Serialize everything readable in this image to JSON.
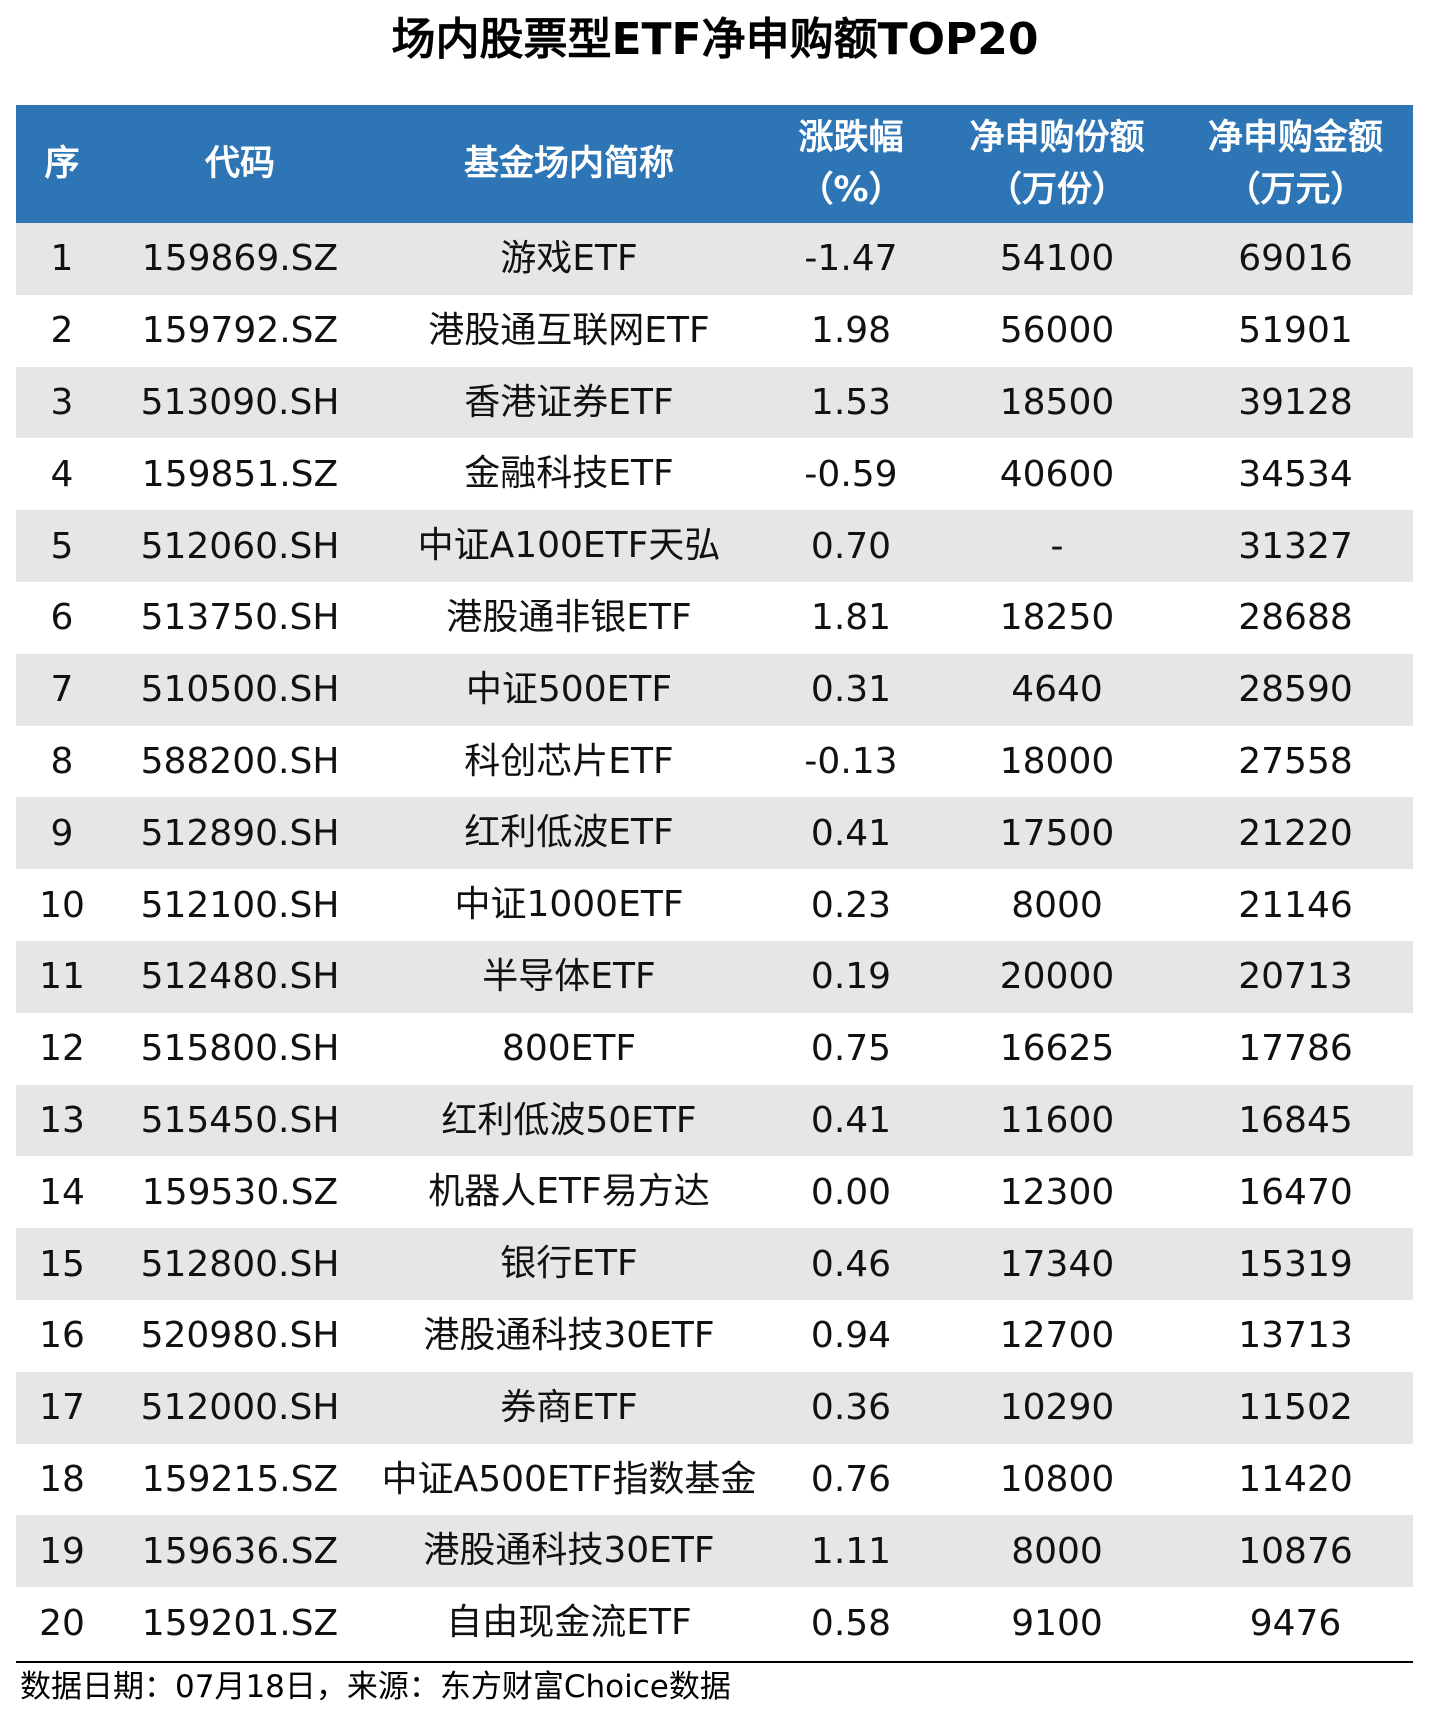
{
  "title": "场内股票型ETF净申购额TOP20",
  "table": {
    "header": [
      "序",
      "代码",
      "基金场内简称",
      "涨跌幅\n（%）",
      "净申购份额\n（万份）",
      "净申购金额\n（万元）"
    ],
    "rows": [
      [
        "1",
        "159869.SZ",
        "游戏ETF",
        "-1.47",
        "54100",
        "69016"
      ],
      [
        "2",
        "159792.SZ",
        "港股通互联网ETF",
        "1.98",
        "56000",
        "51901"
      ],
      [
        "3",
        "513090.SH",
        "香港证券ETF",
        "1.53",
        "18500",
        "39128"
      ],
      [
        "4",
        "159851.SZ",
        "金融科技ETF",
        "-0.59",
        "40600",
        "34534"
      ],
      [
        "5",
        "512060.SH",
        "中证A100ETF天弘",
        "0.70",
        "-",
        "31327"
      ],
      [
        "6",
        "513750.SH",
        "港股通非银ETF",
        "1.81",
        "18250",
        "28688"
      ],
      [
        "7",
        "510500.SH",
        "中证500ETF",
        "0.31",
        "4640",
        "28590"
      ],
      [
        "8",
        "588200.SH",
        "科创芯片ETF",
        "-0.13",
        "18000",
        "27558"
      ],
      [
        "9",
        "512890.SH",
        "红利低波ETF",
        "0.41",
        "17500",
        "21220"
      ],
      [
        "10",
        "512100.SH",
        "中证1000ETF",
        "0.23",
        "8000",
        "21146"
      ],
      [
        "11",
        "512480.SH",
        "半导体ETF",
        "0.19",
        "20000",
        "20713"
      ],
      [
        "12",
        "515800.SH",
        "800ETF",
        "0.75",
        "16625",
        "17786"
      ],
      [
        "13",
        "515450.SH",
        "红利低波50ETF",
        "0.41",
        "11600",
        "16845"
      ],
      [
        "14",
        "159530.SZ",
        "机器人ETF易方达",
        "0.00",
        "12300",
        "16470"
      ],
      [
        "15",
        "512800.SH",
        "银行ETF",
        "0.46",
        "17340",
        "15319"
      ],
      [
        "16",
        "520980.SH",
        "港股通科技30ETF",
        "0.94",
        "12700",
        "13713"
      ],
      [
        "17",
        "512000.SH",
        "券商ETF",
        "0.36",
        "10290",
        "11502"
      ],
      [
        "18",
        "159215.SZ",
        "中证A500ETF指数基金",
        "0.76",
        "10800",
        "11420"
      ],
      [
        "19",
        "159636.SZ",
        "港股通科技30ETF",
        "1.11",
        "8000",
        "10876"
      ],
      [
        "20",
        "159201.SZ",
        "自由现金流ETF",
        "0.58",
        "9100",
        "9476"
      ]
    ]
  },
  "footer": "数据日期：07月18日，来源：东方财富Choice数据"
}
